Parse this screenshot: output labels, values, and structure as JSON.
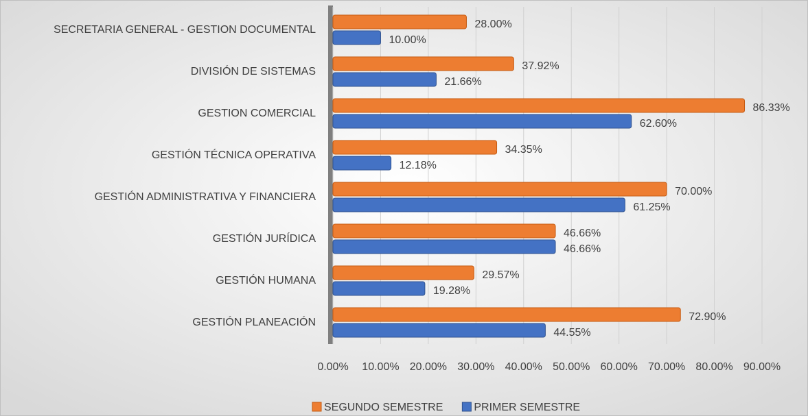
{
  "chart_data": {
    "type": "hbar",
    "categories": [
      "SECRETARIA GENERAL - GESTION DOCUMENTAL",
      "DIVISIÓN DE SISTEMAS",
      "GESTION COMERCIAL",
      "GESTIÓN TÉCNICA OPERATIVA",
      "GESTIÓN ADMINISTRATIVA Y FINANCIERA",
      "GESTIÓN JURÍDICA",
      "GESTIÓN HUMANA",
      "GESTIÓN PLANEACIÓN"
    ],
    "series": [
      {
        "name": "SEGUNDO SEMESTRE",
        "color": "#ed7d31",
        "values": [
          28,
          37.92,
          86.33,
          34.35,
          70,
          46.66,
          29.57,
          72.9
        ],
        "value_labels": [
          "28.00%",
          "37.92%",
          "86.33%",
          "34.35%",
          "70.00%",
          "46.66%",
          "29.57%",
          "72.90%"
        ]
      },
      {
        "name": "PRIMER SEMESTRE",
        "color": "#4472c4",
        "values": [
          10,
          21.66,
          62.6,
          12.18,
          61.25,
          46.66,
          19.28,
          44.55
        ],
        "value_labels": [
          "10.00%",
          "21.66%",
          "62.60%",
          "12.18%",
          "61.25%",
          "46.66%",
          "19.28%",
          "44.55%"
        ]
      }
    ],
    "xlim": [
      0,
      90
    ],
    "xticks": [
      {
        "value": 0,
        "label": "0.00%"
      },
      {
        "value": 10,
        "label": "10.00%"
      },
      {
        "value": 20,
        "label": "20.00%"
      },
      {
        "value": 30,
        "label": "30.00%"
      },
      {
        "value": 40,
        "label": "40.00%"
      },
      {
        "value": 50,
        "label": "50.00%"
      },
      {
        "value": 60,
        "label": "60.00%"
      },
      {
        "value": 70,
        "label": "70.00%"
      },
      {
        "value": 80,
        "label": "80.00%"
      },
      {
        "value": 90,
        "label": "90.00%"
      }
    ],
    "grid": true,
    "legend": "bottom"
  }
}
